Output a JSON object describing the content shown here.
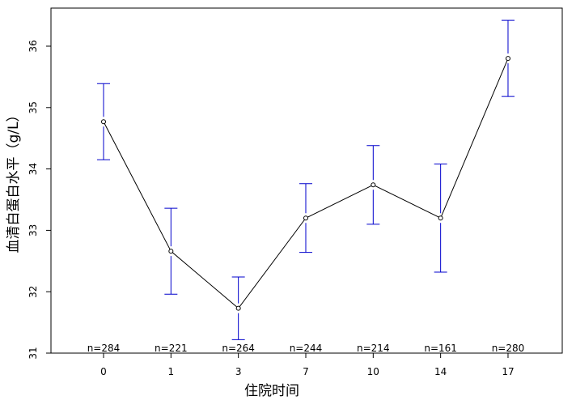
{
  "chart_data": {
    "type": "line",
    "x_label": "住院时间",
    "y_label": "血清白蛋白水平（g/L）",
    "categories": [
      "0",
      "1",
      "3",
      "7",
      "10",
      "14",
      "17"
    ],
    "values": [
      34.77,
      32.66,
      31.73,
      33.2,
      33.74,
      33.2,
      35.8
    ],
    "errors": [
      0.62,
      0.7,
      0.51,
      0.56,
      0.64,
      0.88,
      0.62
    ],
    "sample_labels": [
      "n=284",
      "n=221",
      "n=264",
      "n=244",
      "n=214",
      "n=161",
      "n=280"
    ],
    "color": "#000000",
    "error_color": "#0000cc",
    "ylim": [
      31,
      36.62
    ],
    "yticks": [
      31,
      32,
      33,
      34,
      35,
      36
    ]
  }
}
